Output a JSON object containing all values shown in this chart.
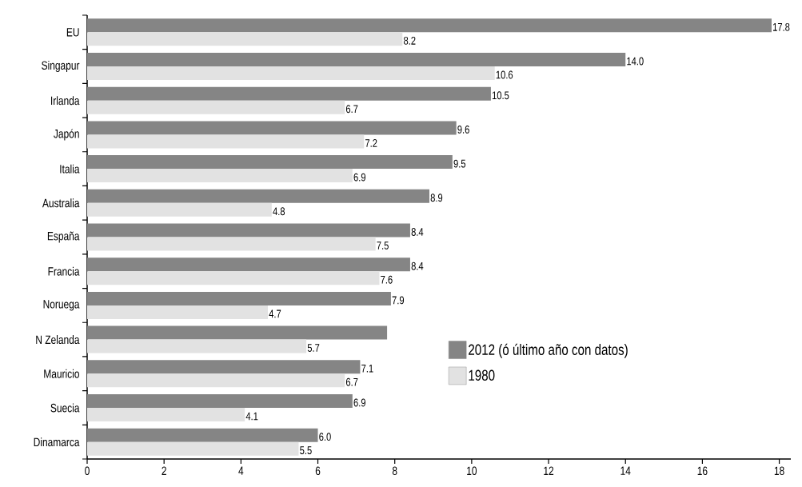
{
  "chart_data": {
    "type": "bar",
    "orientation": "horizontal",
    "categories": [
      "EU",
      "Singapur",
      "Irlanda",
      "Japón",
      "Italia",
      "Australia",
      "España",
      "Francia",
      "Noruega",
      "N Zelanda",
      "Mauricio",
      "Suecia",
      "Dinamarca"
    ],
    "series": [
      {
        "name": "2012 (ó último año con datos)",
        "color": "#858585",
        "values": [
          17.8,
          14.0,
          10.5,
          9.6,
          9.5,
          8.9,
          8.4,
          8.4,
          7.9,
          7.8,
          7.1,
          6.9,
          6.0
        ],
        "value_labels": [
          "17.8",
          "14.0",
          "10.5",
          "9.6",
          "9.5",
          "8.9",
          "8.4",
          "8.4",
          "7.9",
          null,
          "7.1",
          "6.9",
          "6.0"
        ]
      },
      {
        "name": "1980",
        "color": "#e2e2e2",
        "values": [
          8.2,
          10.6,
          6.7,
          7.2,
          6.9,
          4.8,
          7.5,
          7.6,
          4.7,
          5.7,
          6.7,
          4.1,
          5.5
        ],
        "value_labels": [
          "8.2",
          "10.6",
          "6.7",
          "7.2",
          "6.9",
          "4.8",
          "7.5",
          "7.6",
          "4.7",
          "5.7",
          "6.7",
          "4.1",
          "5.5"
        ]
      }
    ],
    "xlim": [
      0,
      18.3
    ],
    "xticks": [
      0,
      2,
      4,
      6,
      8,
      10,
      12,
      14,
      16,
      18
    ],
    "grid": false,
    "legend": "bottom right"
  }
}
